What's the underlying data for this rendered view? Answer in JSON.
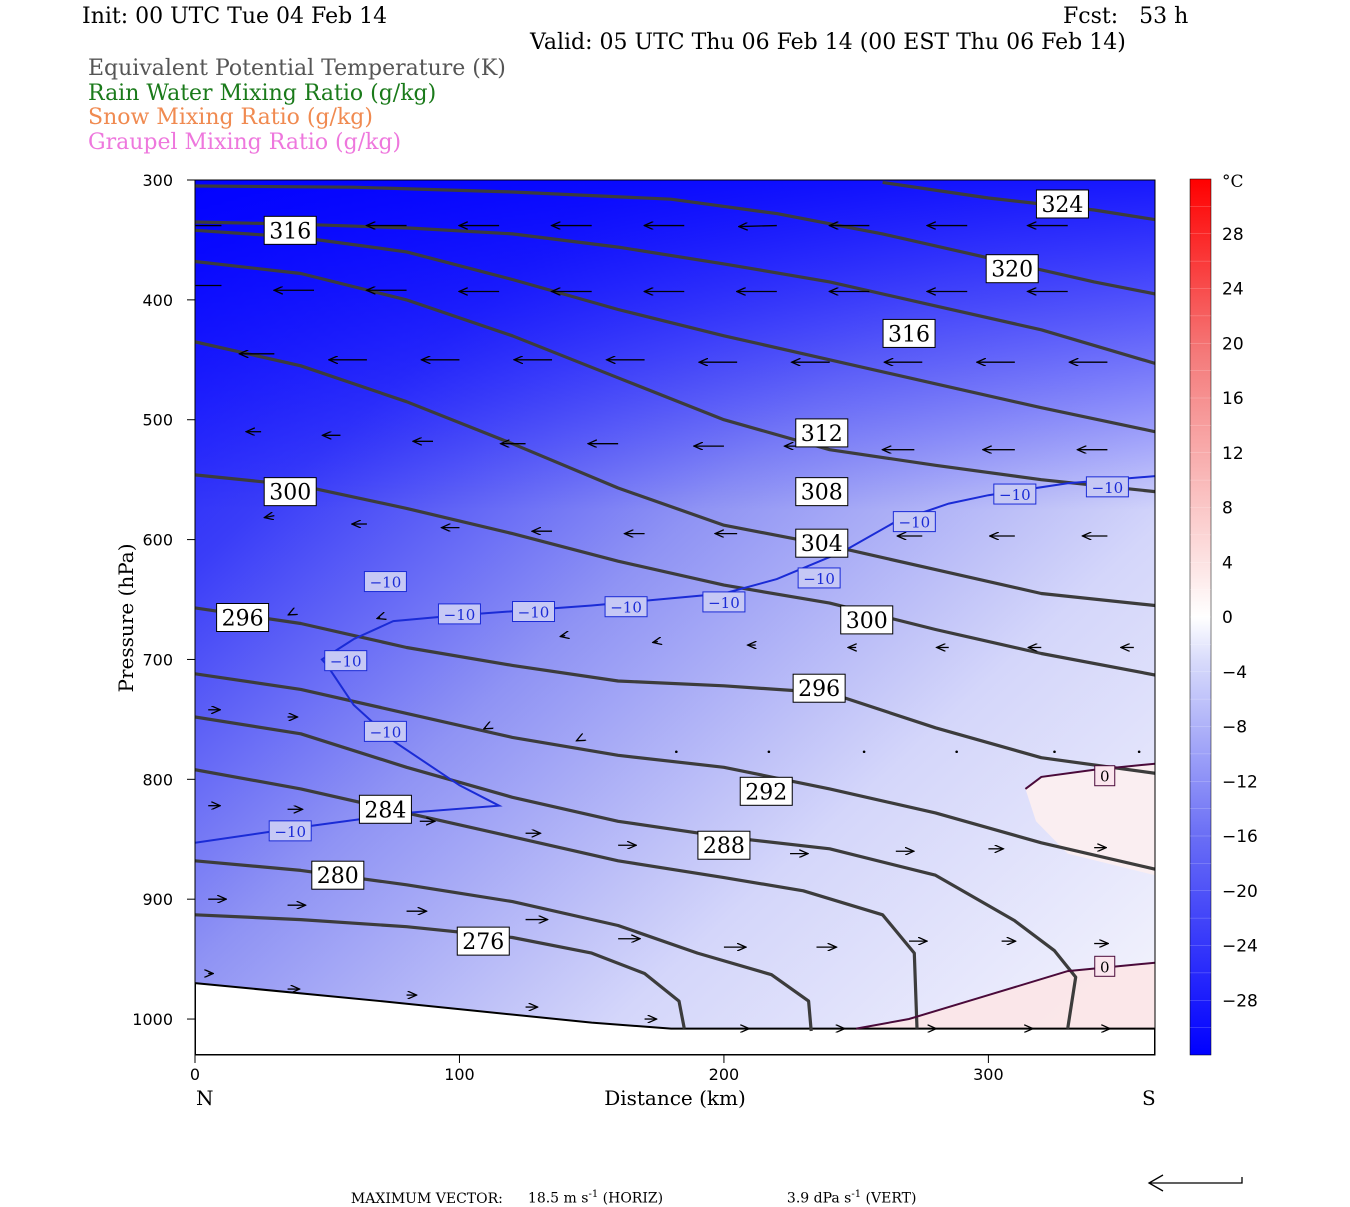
{
  "header": {
    "init": "Init: 00 UTC Tue 04 Feb 14",
    "fcst": "Fcst:   53 h",
    "valid": "Valid: 05 UTC Thu 06 Feb 14 (00 EST Thu 06 Feb 14)"
  },
  "legend": [
    {
      "label": "Equivalent Potential Temperature (K)",
      "color": "#555555"
    },
    {
      "label": "Rain Water Mixing Ratio (g/kg)",
      "color": "#1a7a1a"
    },
    {
      "label": "Snow Mixing Ratio (g/kg)",
      "color": "#f08a50"
    },
    {
      "label": "Graupel Mixing Ratio (g/kg)",
      "color": "#ee77dd"
    }
  ],
  "footer": {
    "prefix": "MAXIMUM VECTOR:",
    "horiz_value": "18.5 m s",
    "horiz_exp": "-1",
    "horiz_unit": " (HORIZ)",
    "vert_value": "3.9 dPa s",
    "vert_exp": "-1",
    "vert_unit": " (VERT)"
  },
  "chart_data": {
    "type": "cross-section",
    "xlabel": "Distance (km)",
    "ylabel": "Pressure (hPa)",
    "xlim": [
      0,
      363
    ],
    "ylim": [
      1030,
      300
    ],
    "xticks": [
      0,
      100,
      200,
      300
    ],
    "yticks": [
      300,
      400,
      500,
      600,
      700,
      800,
      900,
      1000
    ],
    "end_labels": {
      "left": "N",
      "right": "S"
    },
    "colorbar": {
      "unit": "°C",
      "ticks": [
        28,
        24,
        20,
        16,
        12,
        8,
        4,
        0,
        -4,
        -8,
        -12,
        -16,
        -20,
        -24,
        -28
      ],
      "range": [
        -32,
        32
      ]
    },
    "theta_e_contours": [
      {
        "value": 276,
        "points": [
          [
            0,
            913
          ],
          [
            40,
            917
          ],
          [
            80,
            923
          ],
          [
            120,
            932
          ],
          [
            150,
            945
          ],
          [
            170,
            962
          ],
          [
            183,
            985
          ],
          [
            185,
            1008
          ]
        ]
      },
      {
        "value": 280,
        "points": [
          [
            0,
            868
          ],
          [
            40,
            876
          ],
          [
            80,
            888
          ],
          [
            120,
            902
          ],
          [
            160,
            922
          ],
          [
            190,
            945
          ],
          [
            218,
            963
          ],
          [
            232,
            985
          ],
          [
            233,
            1010
          ]
        ]
      },
      {
        "value": 284,
        "points": [
          [
            0,
            792
          ],
          [
            40,
            808
          ],
          [
            80,
            828
          ],
          [
            120,
            848
          ],
          [
            160,
            868
          ],
          [
            200,
            882
          ],
          [
            230,
            893
          ],
          [
            260,
            913
          ],
          [
            272,
            945
          ],
          [
            273,
            1008
          ]
        ]
      },
      {
        "value": 288,
        "points": [
          [
            0,
            748
          ],
          [
            40,
            762
          ],
          [
            80,
            790
          ],
          [
            120,
            815
          ],
          [
            160,
            835
          ],
          [
            200,
            848
          ],
          [
            240,
            858
          ],
          [
            280,
            880
          ],
          [
            310,
            918
          ],
          [
            325,
            943
          ],
          [
            333,
            965
          ],
          [
            330,
            1008
          ]
        ]
      },
      {
        "value": 292,
        "points": [
          [
            0,
            712
          ],
          [
            40,
            725
          ],
          [
            80,
            745
          ],
          [
            120,
            765
          ],
          [
            160,
            780
          ],
          [
            200,
            790
          ],
          [
            240,
            808
          ],
          [
            280,
            828
          ],
          [
            320,
            853
          ],
          [
            363,
            875
          ]
        ]
      },
      {
        "value": 296,
        "points": [
          [
            0,
            657
          ],
          [
            40,
            670
          ],
          [
            80,
            690
          ],
          [
            120,
            705
          ],
          [
            160,
            718
          ],
          [
            200,
            722
          ],
          [
            240,
            728
          ],
          [
            280,
            757
          ],
          [
            320,
            782
          ],
          [
            363,
            795
          ]
        ]
      },
      {
        "value": 300,
        "points": [
          [
            0,
            546
          ],
          [
            40,
            555
          ],
          [
            80,
            574
          ],
          [
            120,
            595
          ],
          [
            160,
            618
          ],
          [
            200,
            638
          ],
          [
            240,
            653
          ],
          [
            280,
            675
          ],
          [
            320,
            695
          ],
          [
            363,
            713
          ]
        ]
      },
      {
        "value": 304,
        "points": [
          [
            0,
            435
          ],
          [
            40,
            455
          ],
          [
            80,
            485
          ],
          [
            120,
            520
          ],
          [
            160,
            557
          ],
          [
            200,
            588
          ],
          [
            240,
            605
          ],
          [
            280,
            625
          ],
          [
            320,
            645
          ],
          [
            363,
            655
          ]
        ]
      },
      {
        "value": 308,
        "points": [
          [
            0,
            368
          ],
          [
            40,
            378
          ],
          [
            80,
            400
          ],
          [
            120,
            430
          ],
          [
            160,
            465
          ],
          [
            200,
            500
          ],
          [
            240,
            525
          ],
          [
            280,
            538
          ],
          [
            320,
            550
          ],
          [
            363,
            560
          ]
        ]
      },
      {
        "value": 312,
        "points": [
          [
            0,
            342
          ],
          [
            40,
            348
          ],
          [
            80,
            360
          ],
          [
            120,
            383
          ],
          [
            160,
            408
          ],
          [
            200,
            430
          ],
          [
            240,
            450
          ],
          [
            280,
            470
          ],
          [
            320,
            490
          ],
          [
            363,
            510
          ]
        ]
      },
      {
        "value": 316,
        "points": [
          [
            0,
            335
          ],
          [
            40,
            337
          ],
          [
            80,
            340
          ],
          [
            120,
            345
          ],
          [
            160,
            356
          ],
          [
            200,
            370
          ],
          [
            240,
            385
          ],
          [
            280,
            405
          ],
          [
            320,
            425
          ],
          [
            363,
            453
          ]
        ]
      },
      {
        "value": 320,
        "points": [
          [
            0,
            305
          ],
          [
            60,
            306
          ],
          [
            120,
            310
          ],
          [
            180,
            316
          ],
          [
            220,
            328
          ],
          [
            260,
            345
          ],
          [
            300,
            365
          ],
          [
            340,
            385
          ],
          [
            363,
            395
          ]
        ]
      },
      {
        "value": 324,
        "points": [
          [
            260,
            302
          ],
          [
            300,
            315
          ],
          [
            340,
            325
          ],
          [
            363,
            333
          ]
        ]
      }
    ],
    "theta_e_labels": [
      {
        "value": "316",
        "x": 36,
        "p": 342
      },
      {
        "value": "324",
        "x": 328,
        "p": 320
      },
      {
        "value": "320",
        "x": 309,
        "p": 374
      },
      {
        "value": "316",
        "x": 270,
        "p": 428
      },
      {
        "value": "312",
        "x": 237,
        "p": 511
      },
      {
        "value": "308",
        "x": 237,
        "p": 560
      },
      {
        "value": "300",
        "x": 36,
        "p": 560
      },
      {
        "value": "304",
        "x": 237,
        "p": 603
      },
      {
        "value": "296",
        "x": 18,
        "p": 665
      },
      {
        "value": "300",
        "x": 254,
        "p": 667
      },
      {
        "value": "296",
        "x": 236,
        "p": 724
      },
      {
        "value": "292",
        "x": 216,
        "p": 810
      },
      {
        "value": "284",
        "x": 72,
        "p": 825
      },
      {
        "value": "288",
        "x": 200,
        "p": 855
      },
      {
        "value": "280",
        "x": 54,
        "p": 880
      },
      {
        "value": "276",
        "x": 109,
        "p": 935
      }
    ],
    "isotherm_minus10": {
      "value": -10,
      "points": [
        [
          0,
          853
        ],
        [
          40,
          840
        ],
        [
          80,
          828
        ],
        [
          115,
          822
        ],
        [
          100,
          805
        ],
        [
          75,
          768
        ],
        [
          60,
          738
        ],
        [
          50,
          705
        ],
        [
          48,
          700
        ],
        [
          60,
          683
        ],
        [
          75,
          668
        ],
        [
          100,
          663
        ],
        [
          150,
          655
        ],
        [
          200,
          645
        ],
        [
          220,
          633
        ],
        [
          245,
          610
        ],
        [
          265,
          585
        ],
        [
          285,
          570
        ],
        [
          300,
          563
        ],
        [
          330,
          553
        ],
        [
          363,
          547
        ]
      ],
      "labels": [
        [
          36,
          843
        ],
        [
          57,
          701
        ],
        [
          72,
          760
        ],
        [
          72,
          635
        ],
        [
          100,
          662
        ],
        [
          128,
          660
        ],
        [
          163,
          656
        ],
        [
          200,
          652
        ],
        [
          236,
          632
        ],
        [
          272,
          585
        ],
        [
          310,
          562
        ],
        [
          345,
          556
        ]
      ]
    },
    "isotherm_0": [
      {
        "value": 0,
        "points": [
          [
            314,
            808
          ],
          [
            320,
            798
          ],
          [
            340,
            792
          ],
          [
            363,
            787
          ]
        ],
        "label": [
          344,
          797
        ]
      },
      {
        "value": 0,
        "points": [
          [
            250,
            1008
          ],
          [
            270,
            1000
          ],
          [
            300,
            980
          ],
          [
            330,
            960
          ],
          [
            363,
            953
          ]
        ],
        "label": [
          344,
          956
        ]
      }
    ],
    "wind_vectors": [
      [
        10,
        338,
        -40,
        0
      ],
      [
        45,
        338,
        -40,
        0
      ],
      [
        80,
        338,
        -40,
        0
      ],
      [
        115,
        338,
        -40,
        0
      ],
      [
        150,
        338,
        -40,
        0
      ],
      [
        185,
        338,
        -40,
        0
      ],
      [
        220,
        338,
        -38,
        1
      ],
      [
        255,
        338,
        -40,
        0
      ],
      [
        292,
        338,
        -40,
        0
      ],
      [
        330,
        338,
        -40,
        0
      ],
      [
        10,
        388,
        -40,
        0
      ],
      [
        45,
        392,
        -40,
        0
      ],
      [
        80,
        392,
        -40,
        0
      ],
      [
        115,
        393,
        -40,
        0
      ],
      [
        150,
        393,
        -40,
        0
      ],
      [
        185,
        393,
        -40,
        0
      ],
      [
        220,
        393,
        -40,
        0
      ],
      [
        255,
        393,
        -40,
        0
      ],
      [
        292,
        393,
        -40,
        0
      ],
      [
        330,
        393,
        -40,
        0
      ],
      [
        30,
        445,
        -35,
        0
      ],
      [
        65,
        450,
        -38,
        0
      ],
      [
        100,
        450,
        -38,
        0
      ],
      [
        135,
        450,
        -38,
        0
      ],
      [
        170,
        450,
        -38,
        0
      ],
      [
        205,
        452,
        -38,
        0
      ],
      [
        240,
        452,
        -38,
        0
      ],
      [
        275,
        452,
        -38,
        0
      ],
      [
        310,
        452,
        -38,
        0
      ],
      [
        345,
        452,
        -38,
        0
      ],
      [
        25,
        510,
        -15,
        0
      ],
      [
        55,
        513,
        -18,
        0
      ],
      [
        90,
        518,
        -20,
        0
      ],
      [
        125,
        520,
        -25,
        0
      ],
      [
        160,
        520,
        -30,
        0
      ],
      [
        200,
        522,
        -30,
        0
      ],
      [
        235,
        522,
        -32,
        0
      ],
      [
        272,
        525,
        -32,
        0
      ],
      [
        310,
        525,
        -32,
        0
      ],
      [
        345,
        525,
        -30,
        0
      ],
      [
        30,
        580,
        -10,
        2
      ],
      [
        65,
        587,
        -15,
        0
      ],
      [
        100,
        590,
        -18,
        0
      ],
      [
        135,
        593,
        -20,
        0
      ],
      [
        170,
        595,
        -20,
        0
      ],
      [
        205,
        595,
        -22,
        0
      ],
      [
        240,
        597,
        -25,
        0
      ],
      [
        275,
        597,
        -25,
        0
      ],
      [
        310,
        597,
        -25,
        0
      ],
      [
        345,
        597,
        -25,
        0
      ],
      [
        36,
        662,
        -2,
        1
      ],
      [
        70,
        665,
        -3,
        1
      ],
      [
        140,
        680,
        -5,
        1
      ],
      [
        175,
        685,
        -5,
        1
      ],
      [
        212,
        688,
        -8,
        0
      ],
      [
        250,
        690,
        -8,
        0
      ],
      [
        285,
        690,
        -12,
        0
      ],
      [
        320,
        690,
        -13,
        0
      ],
      [
        355,
        690,
        -13,
        0
      ],
      [
        5,
        742,
        12,
        0
      ],
      [
        35,
        748,
        10,
        0
      ],
      [
        110,
        757,
        -2,
        1
      ],
      [
        145,
        767,
        -2,
        1
      ],
      [
        182,
        777,
        0,
        0
      ],
      [
        217,
        777,
        0,
        0
      ],
      [
        253,
        777,
        0,
        0
      ],
      [
        288,
        777,
        0,
        0
      ],
      [
        325,
        777,
        0,
        0
      ],
      [
        357,
        777,
        0,
        0
      ],
      [
        5,
        822,
        12,
        0
      ],
      [
        35,
        825,
        15,
        0
      ],
      [
        85,
        835,
        15,
        0
      ],
      [
        125,
        845,
        15,
        0
      ],
      [
        160,
        855,
        18,
        0
      ],
      [
        195,
        860,
        18,
        0
      ],
      [
        225,
        862,
        18,
        0
      ],
      [
        265,
        860,
        18,
        0
      ],
      [
        300,
        858,
        15,
        0
      ],
      [
        340,
        857,
        12,
        0
      ],
      [
        5,
        900,
        18,
        0
      ],
      [
        35,
        905,
        18,
        0
      ],
      [
        80,
        910,
        20,
        0
      ],
      [
        125,
        917,
        22,
        0
      ],
      [
        160,
        933,
        22,
        0
      ],
      [
        200,
        940,
        22,
        0
      ],
      [
        235,
        940,
        20,
        0
      ],
      [
        270,
        935,
        18,
        0
      ],
      [
        305,
        935,
        14,
        0
      ],
      [
        340,
        937,
        14,
        0
      ],
      [
        5,
        962,
        5,
        0
      ],
      [
        35,
        975,
        12,
        0
      ],
      [
        80,
        980,
        10,
        0
      ],
      [
        125,
        990,
        12,
        0
      ],
      [
        170,
        1000,
        12,
        0
      ],
      [
        205,
        1008,
        12,
        0
      ],
      [
        240,
        1008,
        15,
        0
      ],
      [
        275,
        1008,
        14,
        0
      ],
      [
        310,
        1008,
        18,
        0
      ],
      [
        343,
        1008,
        8,
        0
      ]
    ],
    "terrain_surface": [
      [
        0,
        970
      ],
      [
        70,
        985
      ],
      [
        150,
        1003
      ],
      [
        180,
        1008
      ],
      [
        363,
        1008
      ]
    ]
  }
}
